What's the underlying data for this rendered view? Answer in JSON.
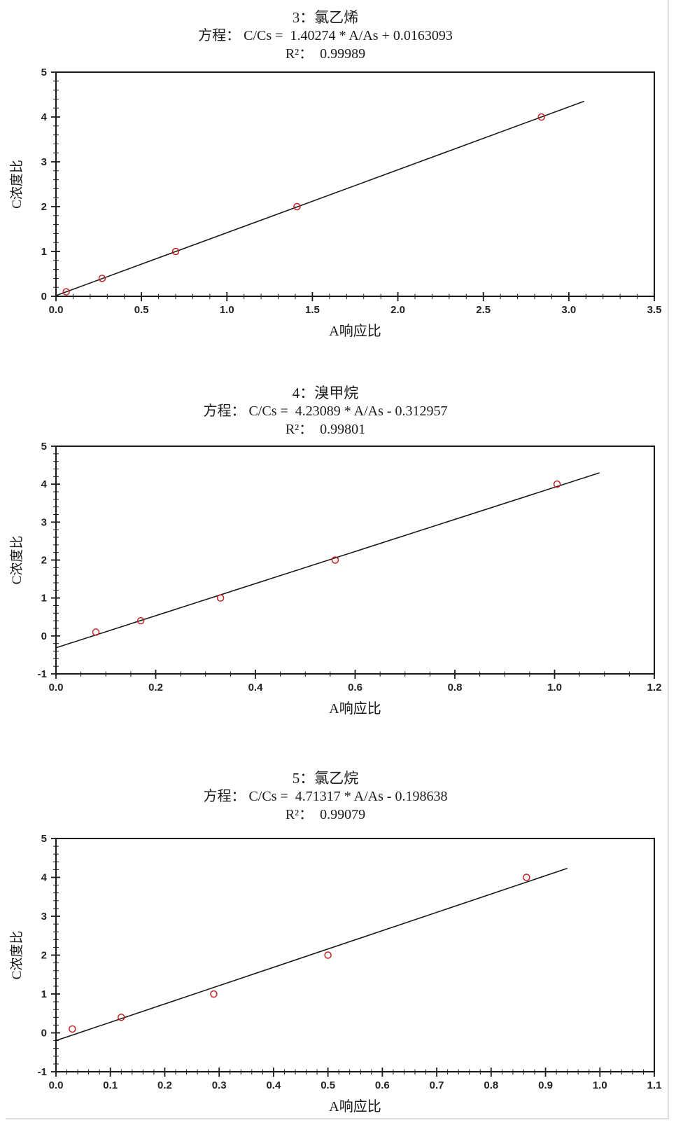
{
  "page": {
    "background": "#ffffff",
    "border_color": "#dcdcdc"
  },
  "axis_style": {
    "axis_color": "#1a1a1a",
    "tick_label_color": "#222222",
    "label_color": "#1a1a1a"
  },
  "chart_data": [
    {
      "type": "scatter",
      "title": "3：氯乙烯",
      "equation_line": "方程： C/Cs =  1.40274 * A/As + 0.0163093",
      "r2_line": "R²：  0.99989",
      "slope": 1.40274,
      "intercept": 0.0163093,
      "r_squared": 0.99989,
      "xlabel": "A响应比",
      "ylabel": "C浓度比",
      "xlim": [
        0,
        3.5
      ],
      "ylim": [
        0,
        5
      ],
      "xticks": [
        "0.0",
        "0.5",
        "1.0",
        "1.5",
        "2.0",
        "2.5",
        "3.0",
        "3.5"
      ],
      "yticks": [
        "0",
        "1",
        "2",
        "3",
        "4",
        "5"
      ],
      "x_minor_step": 0.1,
      "y_minor_step": 0.2,
      "points_x": [
        0.06,
        0.27,
        0.7,
        1.41,
        2.84
      ],
      "points_y": [
        0.1,
        0.4,
        1.0,
        2.0,
        4.0
      ],
      "fit_x_range": [
        0,
        3.09
      ],
      "marker_color": "#c42222",
      "line_color": "#1a1a1a"
    },
    {
      "type": "scatter",
      "title": "4：溴甲烷",
      "equation_line": "方程： C/Cs =  4.23089 * A/As - 0.312957",
      "r2_line": "R²：  0.99801",
      "slope": 4.23089,
      "intercept": -0.312957,
      "r_squared": 0.99801,
      "xlabel": "A响应比",
      "ylabel": "C浓度比",
      "xlim": [
        0,
        1.2
      ],
      "ylim": [
        -1,
        5
      ],
      "xticks": [
        "0.0",
        "0.2",
        "0.4",
        "0.6",
        "0.8",
        "1.0",
        "1.2"
      ],
      "yticks": [
        "-1",
        "0",
        "1",
        "2",
        "3",
        "4",
        "5"
      ],
      "x_minor_step": 0.05,
      "y_minor_step": 0.2,
      "points_x": [
        0.08,
        0.17,
        0.33,
        0.56,
        1.005
      ],
      "points_y": [
        0.1,
        0.4,
        1.0,
        2.0,
        4.0
      ],
      "fit_x_range": [
        0,
        1.09
      ],
      "marker_color": "#c42222",
      "line_color": "#1a1a1a"
    },
    {
      "type": "scatter",
      "title": "5：氯乙烷",
      "equation_line": "方程： C/Cs =  4.71317 * A/As - 0.198638",
      "r2_line": "R²：  0.99079",
      "slope": 4.71317,
      "intercept": -0.198638,
      "r_squared": 0.99079,
      "xlabel": "A响应比",
      "ylabel": "C浓度比",
      "xlim": [
        0,
        1.1
      ],
      "ylim": [
        -1,
        5
      ],
      "xticks": [
        "0.0",
        "0.1",
        "0.2",
        "0.3",
        "0.4",
        "0.5",
        "0.6",
        "0.7",
        "0.8",
        "0.9",
        "1.0",
        "1.1"
      ],
      "yticks": [
        "-1",
        "0",
        "1",
        "2",
        "3",
        "4",
        "5"
      ],
      "x_minor_step": 0.02,
      "y_minor_step": 0.2,
      "points_x": [
        0.03,
        0.12,
        0.29,
        0.5,
        0.865
      ],
      "points_y": [
        0.1,
        0.4,
        1.0,
        2.0,
        4.0
      ],
      "fit_x_range": [
        0,
        0.94
      ],
      "marker_color": "#c42222",
      "line_color": "#1a1a1a"
    }
  ]
}
